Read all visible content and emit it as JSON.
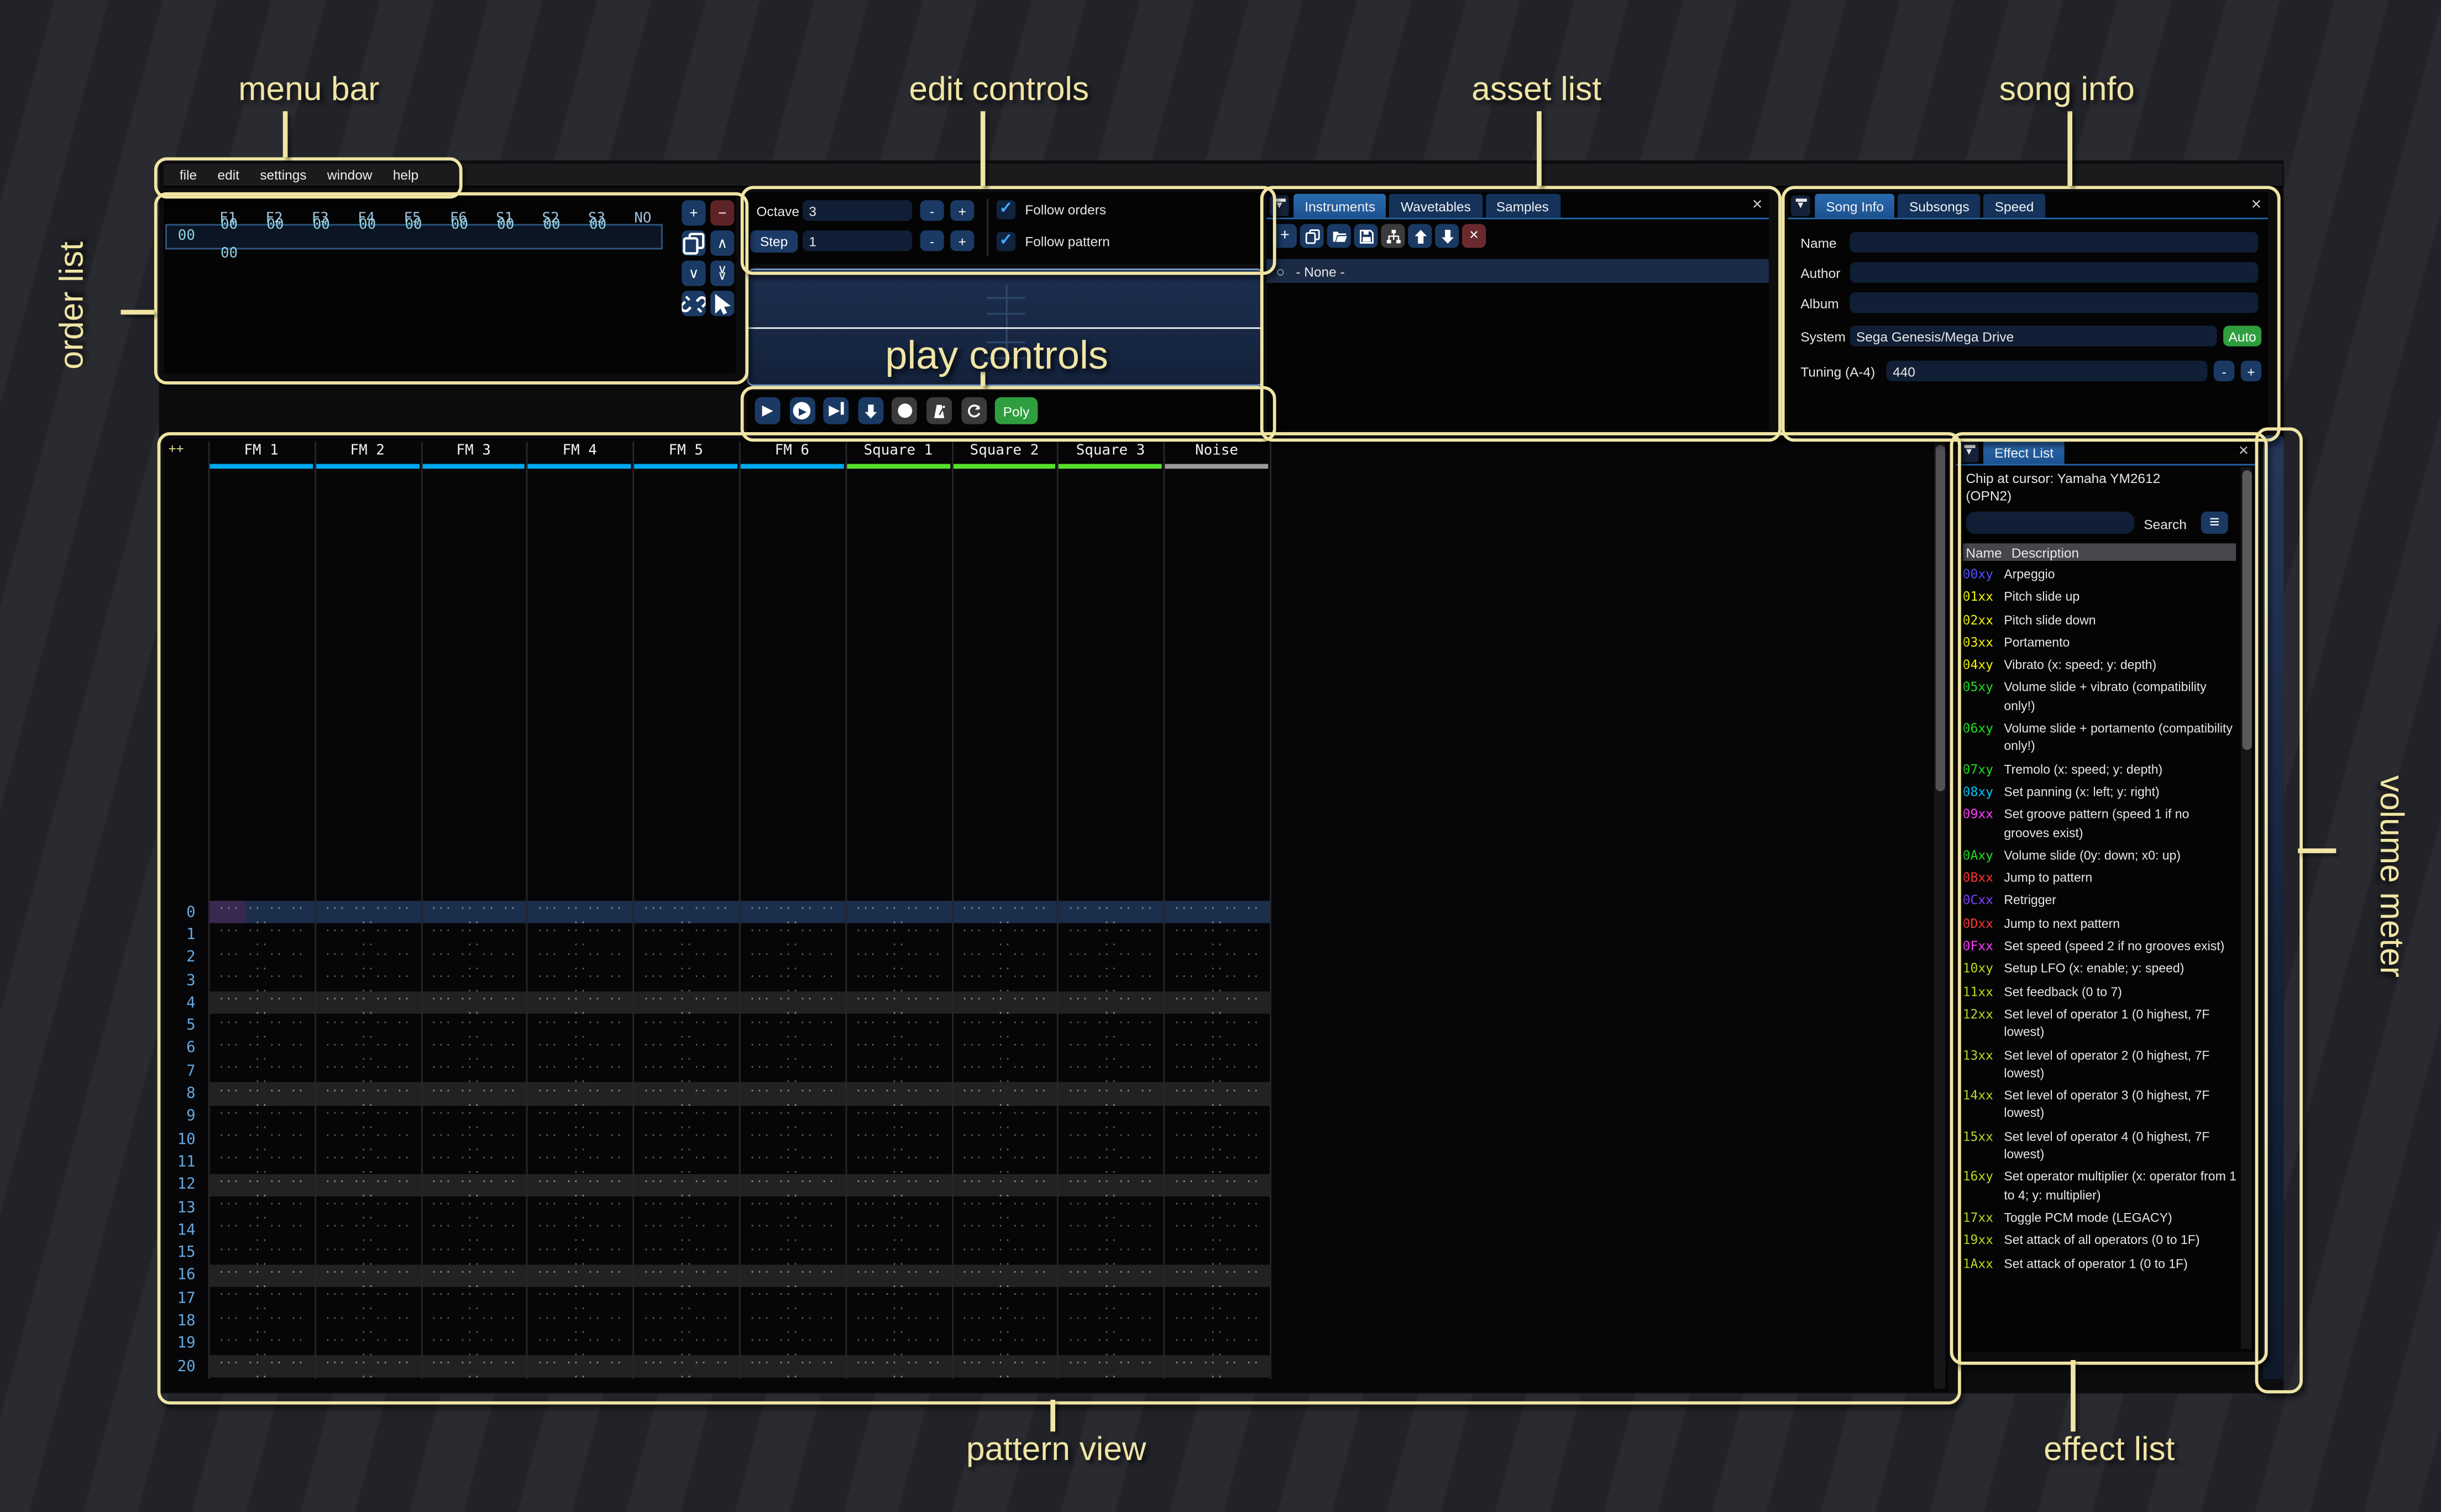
{
  "annotations": {
    "menu_bar": "menu bar",
    "edit_controls": "edit controls",
    "asset_list": "asset list",
    "song_info": "song info",
    "order_list": "order list",
    "play_controls": "play controls",
    "pattern_view": "pattern view",
    "volume_meter": "volume meter",
    "effect_list": "effect list"
  },
  "menu": {
    "items": [
      "file",
      "edit",
      "settings",
      "window",
      "help"
    ]
  },
  "order_list": {
    "row_index": "00",
    "columns": [
      "F1",
      "F2",
      "F3",
      "F4",
      "F5",
      "F6",
      "S1",
      "S2",
      "S3",
      "NO"
    ],
    "row_values": [
      "00",
      "00",
      "00",
      "00",
      "00",
      "00",
      "00",
      "00",
      "00",
      "00"
    ],
    "buttons": [
      {
        "name": "add-order-button",
        "icon": "plus"
      },
      {
        "name": "remove-order-button",
        "icon": "minus",
        "variant": "red"
      },
      {
        "name": "duplicate-order-button",
        "icon": "copy"
      },
      {
        "name": "move-order-up-button",
        "icon": "chevron-up"
      },
      {
        "name": "move-order-down-button",
        "icon": "chevron-down"
      },
      {
        "name": "duplicate-order-end-button",
        "icon": "chevron-double-down"
      },
      {
        "name": "deep-clone-order-button",
        "icon": "unlink"
      },
      {
        "name": "order-edit-mode-button",
        "icon": "cursor"
      }
    ]
  },
  "edit_controls": {
    "octave_label": "Octave",
    "octave_value": "3",
    "step_label": "Step",
    "step_value": "1",
    "minus_label": "-",
    "plus_label": "+",
    "follow_orders_label": "Follow orders",
    "follow_pattern_label": "Follow pattern"
  },
  "play_controls": {
    "buttons": [
      {
        "name": "play-button",
        "icon": "play"
      },
      {
        "name": "play-pattern-button",
        "icon": "play-circle"
      },
      {
        "name": "play-row-button",
        "icon": "play-row"
      },
      {
        "name": "step-row-button",
        "icon": "arrow-down"
      },
      {
        "name": "edit-record-button",
        "icon": "record",
        "variant": "gray"
      },
      {
        "name": "metronome-button",
        "icon": "metronome",
        "variant": "gray"
      },
      {
        "name": "repeat-pattern-button",
        "icon": "repeat",
        "variant": "gray"
      }
    ],
    "poly_label": "Poly"
  },
  "asset_list": {
    "tabs": [
      "Instruments",
      "Wavetables",
      "Samples"
    ],
    "toolbar": [
      {
        "name": "add-asset-button",
        "icon": "plus"
      },
      {
        "name": "duplicate-asset-button",
        "icon": "copy"
      },
      {
        "name": "open-asset-button",
        "icon": "folder-open"
      },
      {
        "name": "save-asset-button",
        "icon": "floppy"
      },
      {
        "name": "toggle-folders-button",
        "icon": "tree",
        "variant": "gray"
      },
      {
        "name": "move-asset-up-button",
        "icon": "arrow-up"
      },
      {
        "name": "move-asset-down-button",
        "icon": "arrow-down"
      },
      {
        "name": "delete-asset-button",
        "icon": "x",
        "variant": "red"
      }
    ],
    "selected_item": "- None -"
  },
  "song_info": {
    "tabs": [
      "Song Info",
      "Subsongs",
      "Speed"
    ],
    "name_label": "Name",
    "name_value": "",
    "author_label": "Author",
    "author_value": "",
    "album_label": "Album",
    "album_value": "",
    "system_label": "System",
    "system_value": "Sega Genesis/Mega Drive",
    "auto_label": "Auto",
    "tuning_label": "Tuning (A-4)",
    "tuning_value": "440",
    "minus_label": "-",
    "plus_label": "+"
  },
  "pattern_view": {
    "corner": "++",
    "channels": [
      {
        "label": "FM 1",
        "color": "#00a8f0"
      },
      {
        "label": "FM 2",
        "color": "#00a8f0"
      },
      {
        "label": "FM 3",
        "color": "#00a8f0"
      },
      {
        "label": "FM 4",
        "color": "#00a8f0"
      },
      {
        "label": "FM 5",
        "color": "#00a8f0"
      },
      {
        "label": "FM 6",
        "color": "#00a8f0"
      },
      {
        "label": "Square 1",
        "color": "#54e02c"
      },
      {
        "label": "Square 2",
        "color": "#54e02c"
      },
      {
        "label": "Square 3",
        "color": "#54e02c"
      },
      {
        "label": "Noise",
        "color": "#9a9a9a"
      }
    ],
    "row_numbers": [
      "0",
      "1",
      "2",
      "3",
      "4",
      "5",
      "6",
      "7",
      "8",
      "9",
      "10",
      "11",
      "12",
      "13",
      "14",
      "15",
      "16",
      "17",
      "18",
      "19",
      "20"
    ],
    "empty_cell": "... .. .. .. ..",
    "playhead_row": 0,
    "highlight_every": 4
  },
  "effect_list": {
    "tab": "Effect List",
    "chip_text": "Chip at cursor: Yamaha YM2612 (OPN2)",
    "search_label": "Search",
    "search_value": "",
    "name_column": "Name",
    "description_column": "Description",
    "effects": [
      {
        "code": "00xy",
        "color": "#5050ff",
        "description": "Arpeggio"
      },
      {
        "code": "01xx",
        "color": "#f5f500",
        "description": "Pitch slide up"
      },
      {
        "code": "02xx",
        "color": "#f5f500",
        "description": "Pitch slide down"
      },
      {
        "code": "03xx",
        "color": "#f5f500",
        "description": "Portamento"
      },
      {
        "code": "04xy",
        "color": "#f5f500",
        "description": "Vibrato (x: speed; y: depth)"
      },
      {
        "code": "05xy",
        "color": "#20e020",
        "description": "Volume slide + vibrato (compatibility only!)"
      },
      {
        "code": "06xy",
        "color": "#20e020",
        "description": "Volume slide + portamento (compatibility only!)"
      },
      {
        "code": "07xy",
        "color": "#20e020",
        "description": "Tremolo (x: speed; y: depth)"
      },
      {
        "code": "08xy",
        "color": "#00c8ff",
        "description": "Set panning (x: left; y: right)"
      },
      {
        "code": "09xx",
        "color": "#ff40ff",
        "description": "Set groove pattern (speed 1 if no grooves exist)"
      },
      {
        "code": "0Axy",
        "color": "#20e020",
        "description": "Volume slide (0y: down; x0: up)"
      },
      {
        "code": "0Bxx",
        "color": "#ff3434",
        "description": "Jump to pattern"
      },
      {
        "code": "0Cxx",
        "color": "#8040ff",
        "description": "Retrigger"
      },
      {
        "code": "0Dxx",
        "color": "#ff3434",
        "description": "Jump to next pattern"
      },
      {
        "code": "0Fxx",
        "color": "#ff40ff",
        "description": "Set speed (speed 2 if no grooves exist)"
      },
      {
        "code": "10xy",
        "color": "#b4dc20",
        "description": "Setup LFO (x: enable; y: speed)"
      },
      {
        "code": "11xx",
        "color": "#b4dc20",
        "description": "Set feedback (0 to 7)"
      },
      {
        "code": "12xx",
        "color": "#b4dc20",
        "description": "Set level of operator 1 (0 highest, 7F lowest)"
      },
      {
        "code": "13xx",
        "color": "#b4dc20",
        "description": "Set level of operator 2 (0 highest, 7F lowest)"
      },
      {
        "code": "14xx",
        "color": "#b4dc20",
        "description": "Set level of operator 3 (0 highest, 7F lowest)"
      },
      {
        "code": "15xx",
        "color": "#b4dc20",
        "description": "Set level of operator 4 (0 highest, 7F lowest)"
      },
      {
        "code": "16xy",
        "color": "#b4dc20",
        "description": "Set operator multiplier (x: operator from 1 to 4; y: multiplier)"
      },
      {
        "code": "17xx",
        "color": "#b4dc20",
        "description": "Toggle PCM mode (LEGACY)"
      },
      {
        "code": "19xx",
        "color": "#b4dc20",
        "description": "Set attack of all operators (0 to 1F)"
      },
      {
        "code": "1Axx",
        "color": "#b4dc20",
        "description": "Set attack of operator 1 (0 to 1F)"
      }
    ]
  },
  "colors": {
    "annotation": "#f0e5a4",
    "accent_tab_blue": "#1e5da4",
    "fm_channel": "#00a8f0",
    "square_channel": "#54e02c",
    "noise_channel": "#9a9a9a",
    "poly_green": "#2f9e3f",
    "check_blue": "#3fa9ff",
    "order_text_cyan": "#8fd4e4"
  }
}
